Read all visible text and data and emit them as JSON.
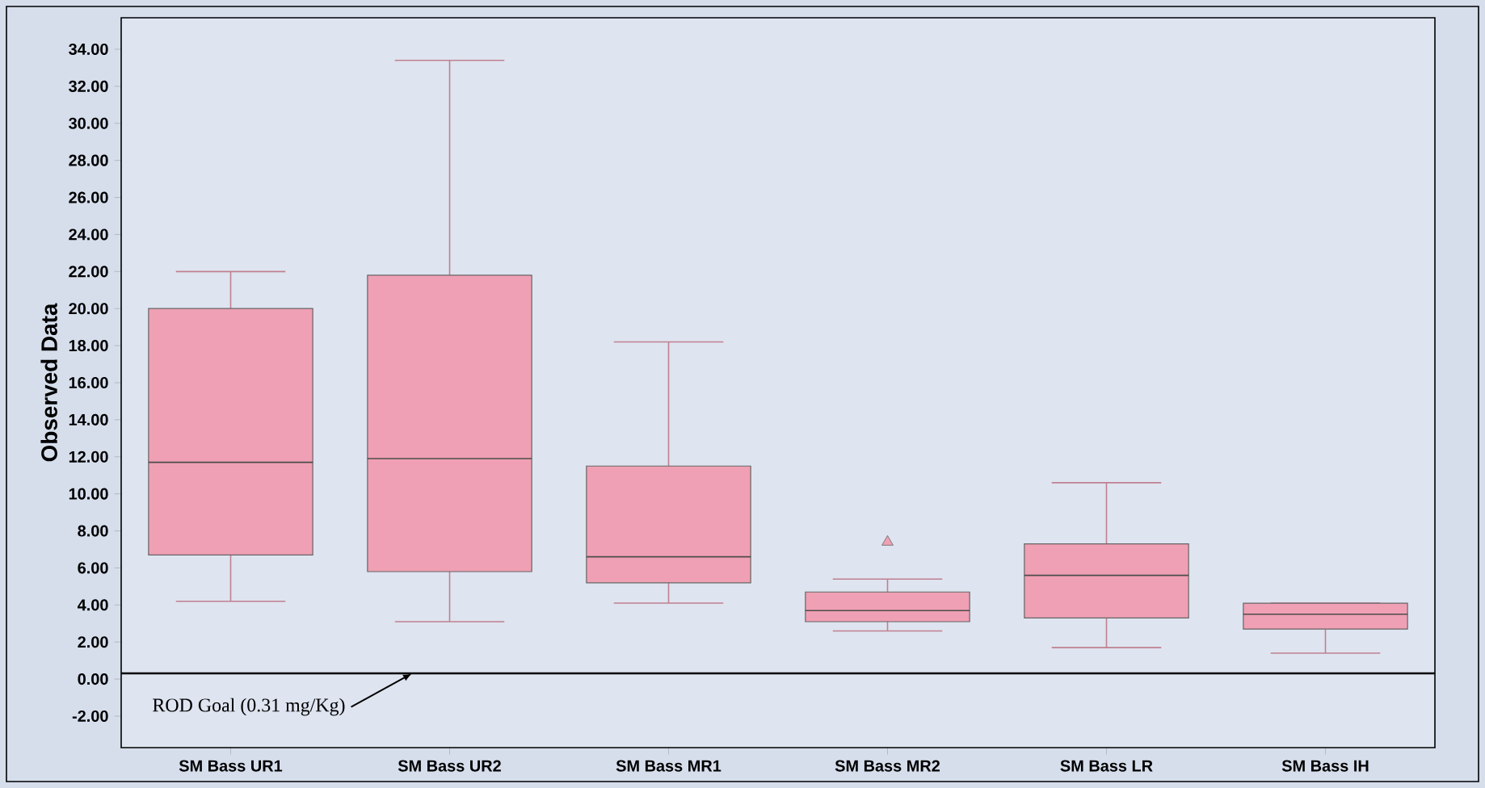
{
  "chart_data": {
    "type": "box",
    "ylabel": "Observed Data",
    "categories": [
      "SM Bass UR1",
      "SM Bass UR2",
      "SM Bass MR1",
      "SM Bass MR2",
      "SM Bass LR",
      "SM Bass IH"
    ],
    "boxes": [
      {
        "low": 4.2,
        "q1": 6.7,
        "median": 11.7,
        "q3": 20.0,
        "high": 22.0
      },
      {
        "low": 3.1,
        "q1": 5.8,
        "median": 11.9,
        "q3": 21.8,
        "high": 33.4
      },
      {
        "low": 4.1,
        "q1": 5.2,
        "median": 6.6,
        "q3": 11.5,
        "high": 18.2
      },
      {
        "low": 2.6,
        "q1": 3.1,
        "median": 3.7,
        "q3": 4.7,
        "high": 5.4,
        "outliers": [
          7.4
        ]
      },
      {
        "low": 1.7,
        "q1": 3.3,
        "median": 5.6,
        "q3": 7.3,
        "high": 10.6
      },
      {
        "low": 1.4,
        "q1": 2.7,
        "median": 3.5,
        "q3": 4.1,
        "high": 4.1
      }
    ],
    "color": "#f0a0b4",
    "marker": "triangle",
    "ylim": [
      -3.7,
      35.7
    ],
    "yticks": [
      {
        "value": -2,
        "label": "-2.00"
      },
      {
        "value": 0,
        "label": "0.00"
      },
      {
        "value": 2,
        "label": "2.00"
      },
      {
        "value": 4,
        "label": "4.00"
      },
      {
        "value": 6,
        "label": "6.00"
      },
      {
        "value": 8,
        "label": "8.00"
      },
      {
        "value": 10,
        "label": "10.00"
      },
      {
        "value": 12,
        "label": "12.00"
      },
      {
        "value": 14,
        "label": "14.00"
      },
      {
        "value": 16,
        "label": "16.00"
      },
      {
        "value": 18,
        "label": "18.00"
      },
      {
        "value": 20,
        "label": "20.00"
      },
      {
        "value": 22,
        "label": "22.00"
      },
      {
        "value": 24,
        "label": "24.00"
      },
      {
        "value": 26,
        "label": "26.00"
      },
      {
        "value": 28,
        "label": "28.00"
      },
      {
        "value": 30,
        "label": "30.00"
      },
      {
        "value": 32,
        "label": "32.00"
      },
      {
        "value": 34,
        "label": "34.00"
      }
    ],
    "ref_lines": [
      {
        "axis": "y",
        "value": 0.31,
        "label": "ROD Goal (0.31 mg/Kg)",
        "color": "#000000"
      }
    ]
  }
}
